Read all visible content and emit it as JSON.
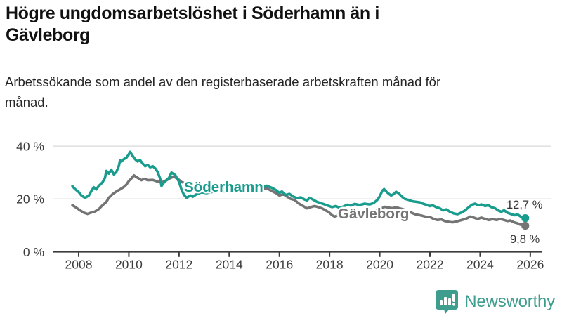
{
  "header": {
    "title": "Högre ungdomsarbetslöshet i Söderhamn än i Gävleborg",
    "subtitle": "Arbetssökande som andel av den registerbaserade arbetskraften månad för månad."
  },
  "footer": {
    "brand": "Newsworthy",
    "brand_color": "#3f9d8e",
    "icon": "bar-chart-speech-bubble-icon"
  },
  "chart_data": {
    "type": "line",
    "title": "Högre ungdomsarbetslöshet i Söderhamn än i Gävleborg",
    "subtitle": "Arbetssökande som andel av den registerbaserade arbetskraften månad för månad.",
    "unit": "%",
    "xlim": [
      2007.6,
      2026.5
    ],
    "ylim": [
      0,
      44
    ],
    "grid": "horizontal",
    "legend_position": "inline-labels",
    "x_ticks": [
      {
        "value": 2008,
        "label": "2008"
      },
      {
        "value": 2010,
        "label": "2010"
      },
      {
        "value": 2012,
        "label": "2012"
      },
      {
        "value": 2014,
        "label": "2014"
      },
      {
        "value": 2016,
        "label": "2016"
      },
      {
        "value": 2018,
        "label": "2018"
      },
      {
        "value": 2020,
        "label": "2020"
      },
      {
        "value": 2022,
        "label": "2022"
      },
      {
        "value": 2024,
        "label": "2024"
      },
      {
        "value": 2026,
        "label": "2026"
      }
    ],
    "y_ticks": [
      {
        "value": 40,
        "label": "40 %"
      },
      {
        "value": 20,
        "label": "20 %"
      },
      {
        "value": 0,
        "label": "0 %"
      }
    ],
    "axis_color": "#3c3c3c",
    "gridline_color": "#d8d8d8",
    "end_label_color": "#333333",
    "series": [
      {
        "name": "Söderhamn",
        "color": "#199c8d",
        "end_label": "12,7 %",
        "end_value": 12.7,
        "points": [
          [
            2007.75,
            24.8
          ],
          [
            2007.85,
            23.8
          ],
          [
            2008.0,
            22.6
          ],
          [
            2008.1,
            21.4
          ],
          [
            2008.25,
            20.4
          ],
          [
            2008.4,
            21.2
          ],
          [
            2008.5,
            22.9
          ],
          [
            2008.6,
            24.4
          ],
          [
            2008.7,
            23.6
          ],
          [
            2008.8,
            24.9
          ],
          [
            2008.95,
            26.3
          ],
          [
            2009.05,
            28.0
          ],
          [
            2009.1,
            30.6
          ],
          [
            2009.2,
            29.6
          ],
          [
            2009.3,
            31.1
          ],
          [
            2009.4,
            29.3
          ],
          [
            2009.5,
            30.2
          ],
          [
            2009.6,
            32.4
          ],
          [
            2009.65,
            34.7
          ],
          [
            2009.7,
            34.2
          ],
          [
            2009.8,
            35.1
          ],
          [
            2009.9,
            35.6
          ],
          [
            2010.0,
            36.9
          ],
          [
            2010.05,
            37.8
          ],
          [
            2010.15,
            36.3
          ],
          [
            2010.25,
            35.0
          ],
          [
            2010.35,
            34.2
          ],
          [
            2010.45,
            34.7
          ],
          [
            2010.55,
            33.4
          ],
          [
            2010.65,
            32.4
          ],
          [
            2010.75,
            32.9
          ],
          [
            2010.85,
            32.0
          ],
          [
            2010.95,
            32.4
          ],
          [
            2011.05,
            31.6
          ],
          [
            2011.15,
            30.2
          ],
          [
            2011.25,
            27.6
          ],
          [
            2011.3,
            24.9
          ],
          [
            2011.4,
            26.2
          ],
          [
            2011.5,
            27.1
          ],
          [
            2011.6,
            28.0
          ],
          [
            2011.7,
            30.0
          ],
          [
            2011.85,
            29.0
          ],
          [
            2012.0,
            26.5
          ],
          [
            2012.1,
            23.5
          ],
          [
            2012.2,
            21.5
          ],
          [
            2012.3,
            20.4
          ],
          [
            2012.45,
            21.3
          ],
          [
            2012.55,
            20.8
          ],
          [
            2012.7,
            21.8
          ],
          [
            2012.9,
            22.5
          ],
          [
            2013.1,
            22.2
          ],
          [
            2013.35,
            22.7
          ],
          [
            2013.6,
            23.1
          ],
          [
            2013.85,
            22.8
          ],
          [
            2014.1,
            23.3
          ],
          [
            2014.35,
            23.7
          ],
          [
            2014.6,
            23.2
          ],
          [
            2014.85,
            23.5
          ],
          [
            2015.1,
            23.9
          ],
          [
            2015.3,
            24.3
          ],
          [
            2015.5,
            25.0
          ],
          [
            2015.7,
            24.2
          ],
          [
            2015.85,
            23.4
          ],
          [
            2016.0,
            22.3
          ],
          [
            2016.1,
            22.8
          ],
          [
            2016.25,
            21.5
          ],
          [
            2016.4,
            21.9
          ],
          [
            2016.55,
            20.9
          ],
          [
            2016.7,
            20.3
          ],
          [
            2016.85,
            20.6
          ],
          [
            2017.0,
            19.8
          ],
          [
            2017.1,
            19.4
          ],
          [
            2017.2,
            20.4
          ],
          [
            2017.35,
            19.7
          ],
          [
            2017.5,
            18.9
          ],
          [
            2017.65,
            18.4
          ],
          [
            2017.8,
            17.9
          ],
          [
            2017.95,
            17.4
          ],
          [
            2018.1,
            16.9
          ],
          [
            2018.25,
            17.3
          ],
          [
            2018.4,
            16.6
          ],
          [
            2018.55,
            17.1
          ],
          [
            2018.7,
            17.8
          ],
          [
            2018.85,
            17.5
          ],
          [
            2019.0,
            18.1
          ],
          [
            2019.2,
            17.7
          ],
          [
            2019.4,
            18.2
          ],
          [
            2019.6,
            17.9
          ],
          [
            2019.75,
            18.4
          ],
          [
            2019.9,
            19.6
          ],
          [
            2020.0,
            21.0
          ],
          [
            2020.1,
            23.1
          ],
          [
            2020.17,
            23.7
          ],
          [
            2020.3,
            22.4
          ],
          [
            2020.45,
            21.3
          ],
          [
            2020.55,
            21.8
          ],
          [
            2020.65,
            22.7
          ],
          [
            2020.75,
            22.1
          ],
          [
            2020.88,
            20.9
          ],
          [
            2021.0,
            20.0
          ],
          [
            2021.15,
            19.6
          ],
          [
            2021.3,
            19.1
          ],
          [
            2021.45,
            18.9
          ],
          [
            2021.6,
            18.7
          ],
          [
            2021.72,
            18.2
          ],
          [
            2021.85,
            17.8
          ],
          [
            2022.0,
            17.3
          ],
          [
            2022.1,
            17.6
          ],
          [
            2022.25,
            16.9
          ],
          [
            2022.4,
            16.4
          ],
          [
            2022.52,
            15.6
          ],
          [
            2022.65,
            16.0
          ],
          [
            2022.8,
            15.1
          ],
          [
            2022.95,
            14.5
          ],
          [
            2023.1,
            14.2
          ],
          [
            2023.25,
            14.8
          ],
          [
            2023.4,
            15.6
          ],
          [
            2023.55,
            16.9
          ],
          [
            2023.68,
            17.8
          ],
          [
            2023.8,
            18.2
          ],
          [
            2023.92,
            17.6
          ],
          [
            2024.05,
            17.9
          ],
          [
            2024.2,
            17.3
          ],
          [
            2024.32,
            17.6
          ],
          [
            2024.45,
            16.9
          ],
          [
            2024.6,
            16.4
          ],
          [
            2024.72,
            15.6
          ],
          [
            2024.85,
            15.1
          ],
          [
            2024.95,
            15.7
          ],
          [
            2025.1,
            14.7
          ],
          [
            2025.25,
            14.2
          ],
          [
            2025.38,
            13.8
          ],
          [
            2025.5,
            14.1
          ],
          [
            2025.6,
            13.4
          ],
          [
            2025.7,
            12.9
          ],
          [
            2025.8,
            12.7
          ]
        ]
      },
      {
        "name": "Gävleborg",
        "color": "#747474",
        "end_label": "9,8 %",
        "end_value": 9.8,
        "points": [
          [
            2007.75,
            17.6
          ],
          [
            2007.9,
            16.7
          ],
          [
            2008.05,
            15.7
          ],
          [
            2008.2,
            14.8
          ],
          [
            2008.35,
            14.3
          ],
          [
            2008.5,
            14.8
          ],
          [
            2008.65,
            15.2
          ],
          [
            2008.8,
            16.1
          ],
          [
            2008.95,
            17.6
          ],
          [
            2009.1,
            18.8
          ],
          [
            2009.2,
            20.4
          ],
          [
            2009.35,
            21.8
          ],
          [
            2009.5,
            22.8
          ],
          [
            2009.65,
            23.6
          ],
          [
            2009.8,
            24.5
          ],
          [
            2009.9,
            25.4
          ],
          [
            2010.0,
            26.8
          ],
          [
            2010.1,
            27.7
          ],
          [
            2010.2,
            28.9
          ],
          [
            2010.35,
            28.0
          ],
          [
            2010.5,
            27.1
          ],
          [
            2010.62,
            27.6
          ],
          [
            2010.75,
            27.1
          ],
          [
            2010.95,
            27.2
          ],
          [
            2011.1,
            26.7
          ],
          [
            2011.3,
            26.2
          ],
          [
            2011.5,
            27.1
          ],
          [
            2011.68,
            28.0
          ],
          [
            2011.8,
            28.4
          ],
          [
            2011.95,
            27.6
          ],
          [
            2012.1,
            26.4
          ],
          [
            2012.25,
            25.9
          ],
          [
            2012.4,
            25.7
          ],
          [
            2012.6,
            25.4
          ],
          [
            2012.85,
            25.1
          ],
          [
            2013.1,
            24.8
          ],
          [
            2013.4,
            24.4
          ],
          [
            2013.7,
            24.0
          ],
          [
            2014.0,
            23.7
          ],
          [
            2014.3,
            23.3
          ],
          [
            2014.6,
            23.0
          ],
          [
            2014.9,
            22.9
          ],
          [
            2015.15,
            23.2
          ],
          [
            2015.35,
            23.7
          ],
          [
            2015.5,
            24.0
          ],
          [
            2015.7,
            23.0
          ],
          [
            2015.88,
            22.1
          ],
          [
            2016.0,
            21.3
          ],
          [
            2016.15,
            21.8
          ],
          [
            2016.3,
            20.9
          ],
          [
            2016.45,
            20.0
          ],
          [
            2016.6,
            19.6
          ],
          [
            2016.78,
            18.2
          ],
          [
            2016.95,
            17.3
          ],
          [
            2017.1,
            16.4
          ],
          [
            2017.25,
            16.9
          ],
          [
            2017.4,
            17.3
          ],
          [
            2017.55,
            16.9
          ],
          [
            2017.7,
            16.4
          ],
          [
            2017.85,
            15.6
          ],
          [
            2018.0,
            14.7
          ],
          [
            2018.1,
            13.8
          ],
          [
            2018.2,
            13.3
          ],
          [
            2018.35,
            13.8
          ],
          [
            2018.5,
            14.2
          ],
          [
            2018.7,
            14.5
          ],
          [
            2018.9,
            14.3
          ],
          [
            2019.1,
            14.6
          ],
          [
            2019.3,
            14.9
          ],
          [
            2019.5,
            15.0
          ],
          [
            2019.7,
            15.2
          ],
          [
            2019.9,
            15.6
          ],
          [
            2020.05,
            16.3
          ],
          [
            2020.2,
            17.0
          ],
          [
            2020.35,
            16.7
          ],
          [
            2020.5,
            16.5
          ],
          [
            2020.65,
            16.8
          ],
          [
            2020.8,
            16.4
          ],
          [
            2020.95,
            16.0
          ],
          [
            2021.1,
            15.3
          ],
          [
            2021.25,
            14.8
          ],
          [
            2021.4,
            14.2
          ],
          [
            2021.55,
            13.9
          ],
          [
            2021.7,
            13.6
          ],
          [
            2021.85,
            13.2
          ],
          [
            2022.0,
            13.1
          ],
          [
            2022.15,
            12.4
          ],
          [
            2022.3,
            12.0
          ],
          [
            2022.45,
            12.2
          ],
          [
            2022.6,
            11.6
          ],
          [
            2022.75,
            11.3
          ],
          [
            2022.9,
            11.1
          ],
          [
            2023.05,
            11.4
          ],
          [
            2023.2,
            11.8
          ],
          [
            2023.35,
            12.2
          ],
          [
            2023.5,
            12.7
          ],
          [
            2023.6,
            13.3
          ],
          [
            2023.75,
            12.9
          ],
          [
            2023.9,
            12.4
          ],
          [
            2024.05,
            12.9
          ],
          [
            2024.2,
            12.4
          ],
          [
            2024.35,
            12.0
          ],
          [
            2024.5,
            12.3
          ],
          [
            2024.65,
            12.0
          ],
          [
            2024.8,
            12.4
          ],
          [
            2024.95,
            12.0
          ],
          [
            2025.1,
            11.6
          ],
          [
            2025.2,
            11.8
          ],
          [
            2025.35,
            11.1
          ],
          [
            2025.5,
            10.7
          ],
          [
            2025.6,
            10.2
          ],
          [
            2025.7,
            10.5
          ],
          [
            2025.8,
            9.8
          ]
        ]
      }
    ]
  }
}
